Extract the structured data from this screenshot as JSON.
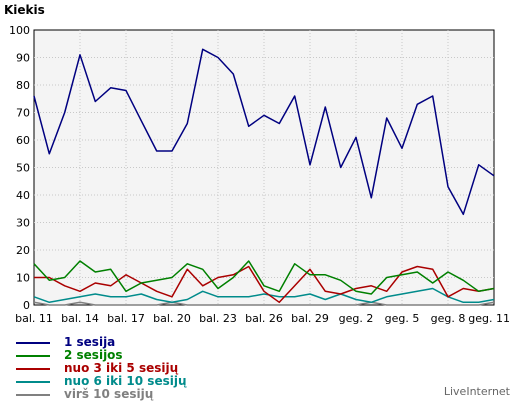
{
  "chart_data": {
    "type": "line",
    "title": "Kiekis",
    "ylim": [
      0,
      100
    ],
    "yticks": [
      0,
      10,
      20,
      30,
      40,
      50,
      60,
      70,
      80,
      90,
      100
    ],
    "x": [
      "bal. 11",
      "bal. 12",
      "bal. 13",
      "bal. 14",
      "bal. 15",
      "bal. 16",
      "bal. 17",
      "bal. 18",
      "bal. 19",
      "bal. 20",
      "bal. 21",
      "bal. 22",
      "bal. 23",
      "bal. 24",
      "bal. 25",
      "bal. 26",
      "bal. 27",
      "bal. 28",
      "bal. 29",
      "bal. 30",
      "geg. 1",
      "geg. 2",
      "geg. 3",
      "geg. 4",
      "geg. 5",
      "geg. 6",
      "geg. 7",
      "geg. 8",
      "geg. 9",
      "geg. 10",
      "geg. 11"
    ],
    "xtick_labels": [
      {
        "index": 0,
        "label": "bal. 11"
      },
      {
        "index": 3,
        "label": "bal. 14"
      },
      {
        "index": 6,
        "label": "bal. 17"
      },
      {
        "index": 9,
        "label": "bal. 20"
      },
      {
        "index": 12,
        "label": "bal. 23"
      },
      {
        "index": 15,
        "label": "bal. 26"
      },
      {
        "index": 18,
        "label": "bal. 29"
      },
      {
        "index": 21,
        "label": "geg. 2"
      },
      {
        "index": 24,
        "label": "geg. 5"
      },
      {
        "index": 27,
        "label": "geg. 8"
      },
      {
        "index": 30,
        "label": "geg. 11"
      }
    ],
    "grid": true,
    "legend_position": "bottom-left",
    "series": [
      {
        "name": "1 sesija",
        "color": "#000080",
        "values": [
          76,
          55,
          70,
          91,
          74,
          79,
          78,
          67,
          56,
          56,
          66,
          93,
          90,
          84,
          65,
          69,
          66,
          76,
          51,
          72,
          50,
          61,
          39,
          68,
          57,
          73,
          76,
          43,
          33,
          51,
          47
        ]
      },
      {
        "name": "2 sesijos",
        "color": "#008000",
        "values": [
          15,
          9,
          10,
          16,
          12,
          13,
          5,
          8,
          9,
          10,
          15,
          13,
          6,
          10,
          16,
          7,
          5,
          15,
          11,
          11,
          9,
          5,
          4,
          10,
          11,
          12,
          8,
          12,
          9,
          5,
          6
        ]
      },
      {
        "name": "nuo 3 iki 5 sesijų",
        "color": "#aa0000",
        "values": [
          10,
          10,
          7,
          5,
          8,
          7,
          11,
          8,
          5,
          3,
          13,
          7,
          10,
          11,
          14,
          5,
          1,
          7,
          13,
          5,
          4,
          6,
          7,
          5,
          12,
          14,
          13,
          3,
          6,
          5,
          6
        ]
      },
      {
        "name": "nuo 6 iki 10 sesijų",
        "color": "#008b8b",
        "values": [
          3,
          1,
          2,
          3,
          4,
          3,
          3,
          4,
          2,
          1,
          2,
          5,
          3,
          3,
          3,
          4,
          3,
          3,
          4,
          2,
          4,
          2,
          1,
          3,
          4,
          5,
          6,
          3,
          1,
          1,
          2
        ]
      },
      {
        "name": "virš 10 sesijų",
        "color": "#808080",
        "values": [
          1,
          0,
          0,
          1,
          0,
          0,
          0,
          0,
          0,
          1,
          0,
          0,
          0,
          0,
          0,
          0,
          0,
          0,
          0,
          0,
          0,
          0,
          1,
          0,
          0,
          0,
          0,
          0,
          0,
          0,
          1
        ]
      }
    ]
  },
  "credit": "LiveInternet"
}
